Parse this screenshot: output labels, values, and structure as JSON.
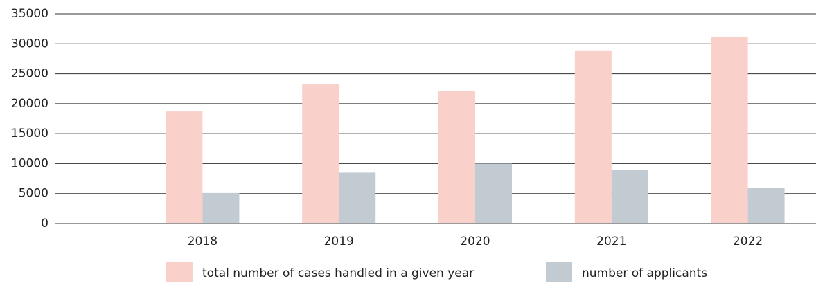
{
  "chart_data": {
    "type": "bar",
    "categories": [
      "2018",
      "2019",
      "2020",
      "2021",
      "2022"
    ],
    "series": [
      {
        "name": "total number of cases handled in a given year",
        "color": "#f9d0ca",
        "values": [
          18700,
          23300,
          22100,
          28900,
          31200
        ]
      },
      {
        "name": "number of applicants",
        "color": "#c2cbd1",
        "values": [
          5100,
          8500,
          10000,
          9000,
          6000
        ]
      }
    ],
    "ylim": [
      0,
      35000
    ],
    "yticks": [
      0,
      5000,
      10000,
      15000,
      20000,
      25000,
      30000,
      35000
    ],
    "grid": true,
    "legend": "bottom"
  }
}
